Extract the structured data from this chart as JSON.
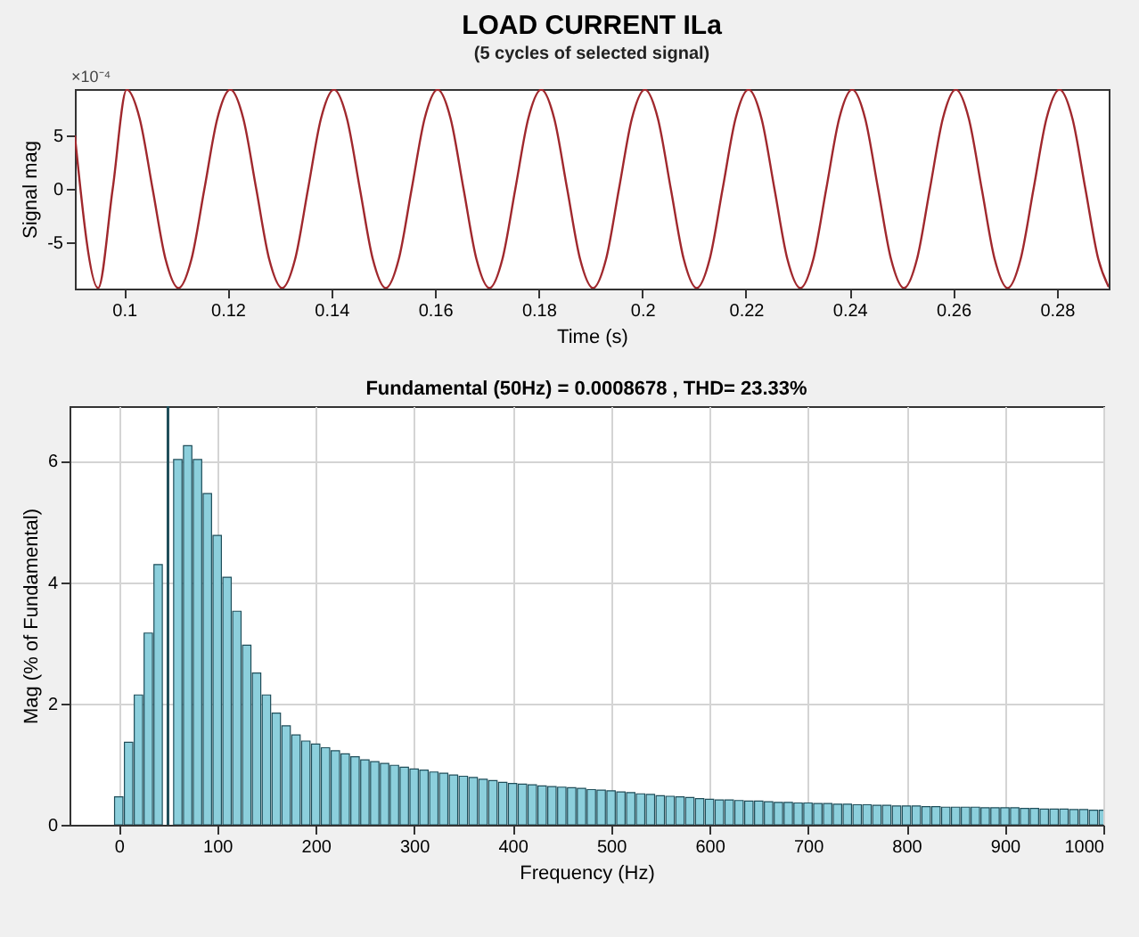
{
  "chart_data": [
    {
      "type": "line",
      "title": "LOAD CURRENT  ILa",
      "subtitle": "(5 cycles of selected signal)",
      "xlabel": "Time (s)",
      "ylabel": "Signal mag",
      "annotations": [
        "×10⁻⁴"
      ],
      "color": "#a0282d",
      "marker": "none",
      "line_style": "solid",
      "grid": false,
      "xlim": [
        0.0905,
        0.29
      ],
      "ylim": [
        -9.35,
        9.35
      ],
      "xticks": [
        0.1,
        0.12,
        0.14,
        0.16,
        0.18,
        0.2,
        0.22,
        0.24,
        0.26,
        0.28
      ],
      "yticks": [
        -5,
        0,
        5
      ],
      "x": [
        0.0905,
        0.095,
        0.0978,
        0.1005,
        0.103,
        0.1055,
        0.108,
        0.1105,
        0.113,
        0.1155,
        0.118,
        0.1205,
        0.123,
        0.1255,
        0.128,
        0.1305,
        0.133,
        0.1355,
        0.138,
        0.1405,
        0.143,
        0.1455,
        0.148,
        0.1505,
        0.153,
        0.1555,
        0.158,
        0.1605,
        0.163,
        0.1655,
        0.168,
        0.1705,
        0.173,
        0.1755,
        0.178,
        0.1805,
        0.183,
        0.1855,
        0.188,
        0.1905,
        0.193,
        0.1955,
        0.198,
        0.2005,
        0.203,
        0.2055,
        0.208,
        0.2105,
        0.213,
        0.2155,
        0.218,
        0.2205,
        0.223,
        0.2255,
        0.228,
        0.2305,
        0.233,
        0.2355,
        0.238,
        0.2405,
        0.243,
        0.2455,
        0.248,
        0.2505,
        0.253,
        0.2555,
        0.258,
        0.2605,
        0.263,
        0.2655,
        0.268,
        0.2705,
        0.273,
        0.2755,
        0.278,
        0.2805,
        0.283,
        0.2855,
        0.288,
        0.29
      ],
      "values": [
        5,
        -9.3,
        0,
        9.3,
        6.6,
        0,
        -6.6,
        -9.3,
        -6.6,
        0,
        6.6,
        9.3,
        6.6,
        0,
        -6.6,
        -9.3,
        -6.6,
        0,
        6.6,
        9.3,
        6.6,
        0,
        -6.6,
        -9.3,
        -6.6,
        0,
        6.6,
        9.3,
        6.6,
        0,
        -6.6,
        -9.3,
        -6.6,
        0,
        6.6,
        9.3,
        6.6,
        0,
        -6.6,
        -9.3,
        -6.6,
        0,
        6.6,
        9.3,
        6.6,
        0,
        -6.6,
        -9.3,
        -6.6,
        0,
        6.6,
        9.3,
        6.6,
        0,
        -6.6,
        -9.3,
        -6.6,
        0,
        6.6,
        9.3,
        6.6,
        0,
        -6.6,
        -9.3,
        -6.6,
        0,
        6.6,
        9.3,
        6.6,
        0,
        -6.6,
        -9.3,
        -6.6,
        0,
        6.6,
        9.3,
        6.6,
        0,
        -6.6,
        -9.2
      ]
    },
    {
      "type": "bar",
      "title": "Fundamental (50Hz) = 0.0008678 , THD= 23.33%",
      "xlabel": "Frequency (Hz)",
      "ylabel": "Mag (% of Fundamental)",
      "color": "#8ccfdc",
      "grid": true,
      "xlim": [
        -50,
        1000
      ],
      "ylim": [
        0,
        6.9
      ],
      "xticks": [
        0,
        100,
        200,
        300,
        400,
        500,
        600,
        700,
        800,
        900,
        1000
      ],
      "yticks": [
        0,
        2,
        4,
        6
      ],
      "ref_lines": [
        {
          "axis": "x",
          "value": 50,
          "color": "#1f4e5a"
        }
      ],
      "x": [
        0,
        10,
        20,
        30,
        40,
        50,
        60,
        70,
        80,
        90,
        100,
        110,
        120,
        130,
        140,
        150,
        160,
        170,
        180,
        190,
        200,
        210,
        220,
        230,
        240,
        250,
        260,
        270,
        280,
        290,
        300,
        310,
        320,
        330,
        340,
        350,
        360,
        370,
        380,
        390,
        400,
        410,
        420,
        430,
        440,
        450,
        460,
        470,
        480,
        490,
        500,
        510,
        520,
        530,
        540,
        550,
        560,
        570,
        580,
        590,
        600,
        610,
        620,
        630,
        640,
        650,
        660,
        670,
        680,
        690,
        700,
        710,
        720,
        730,
        740,
        750,
        760,
        770,
        780,
        790,
        800,
        810,
        820,
        830,
        840,
        850,
        860,
        870,
        880,
        890,
        900,
        910,
        920,
        930,
        940,
        950,
        960,
        970,
        980,
        990,
        1000
      ],
      "values": [
        0.46,
        1.36,
        2.14,
        3.16,
        4.29,
        null,
        6.02,
        6.25,
        6.02,
        5.46,
        4.77,
        4.08,
        3.52,
        2.96,
        2.5,
        2.14,
        1.84,
        1.63,
        1.48,
        1.38,
        1.33,
        1.27,
        1.22,
        1.17,
        1.12,
        1.07,
        1.04,
        1.01,
        0.98,
        0.95,
        0.92,
        0.9,
        0.87,
        0.85,
        0.82,
        0.8,
        0.78,
        0.75,
        0.73,
        0.7,
        0.68,
        0.67,
        0.66,
        0.64,
        0.63,
        0.62,
        0.61,
        0.6,
        0.58,
        0.57,
        0.56,
        0.54,
        0.53,
        0.51,
        0.5,
        0.48,
        0.47,
        0.46,
        0.45,
        0.43,
        0.42,
        0.41,
        0.41,
        0.4,
        0.39,
        0.39,
        0.38,
        0.37,
        0.37,
        0.36,
        0.36,
        0.35,
        0.35,
        0.34,
        0.34,
        0.33,
        0.33,
        0.32,
        0.32,
        0.31,
        0.31,
        0.31,
        0.3,
        0.3,
        0.29,
        0.29,
        0.29,
        0.29,
        0.28,
        0.28,
        0.28,
        0.28,
        0.27,
        0.27,
        0.26,
        0.26,
        0.26,
        0.25,
        0.25,
        0.24,
        0.24
      ]
    }
  ]
}
